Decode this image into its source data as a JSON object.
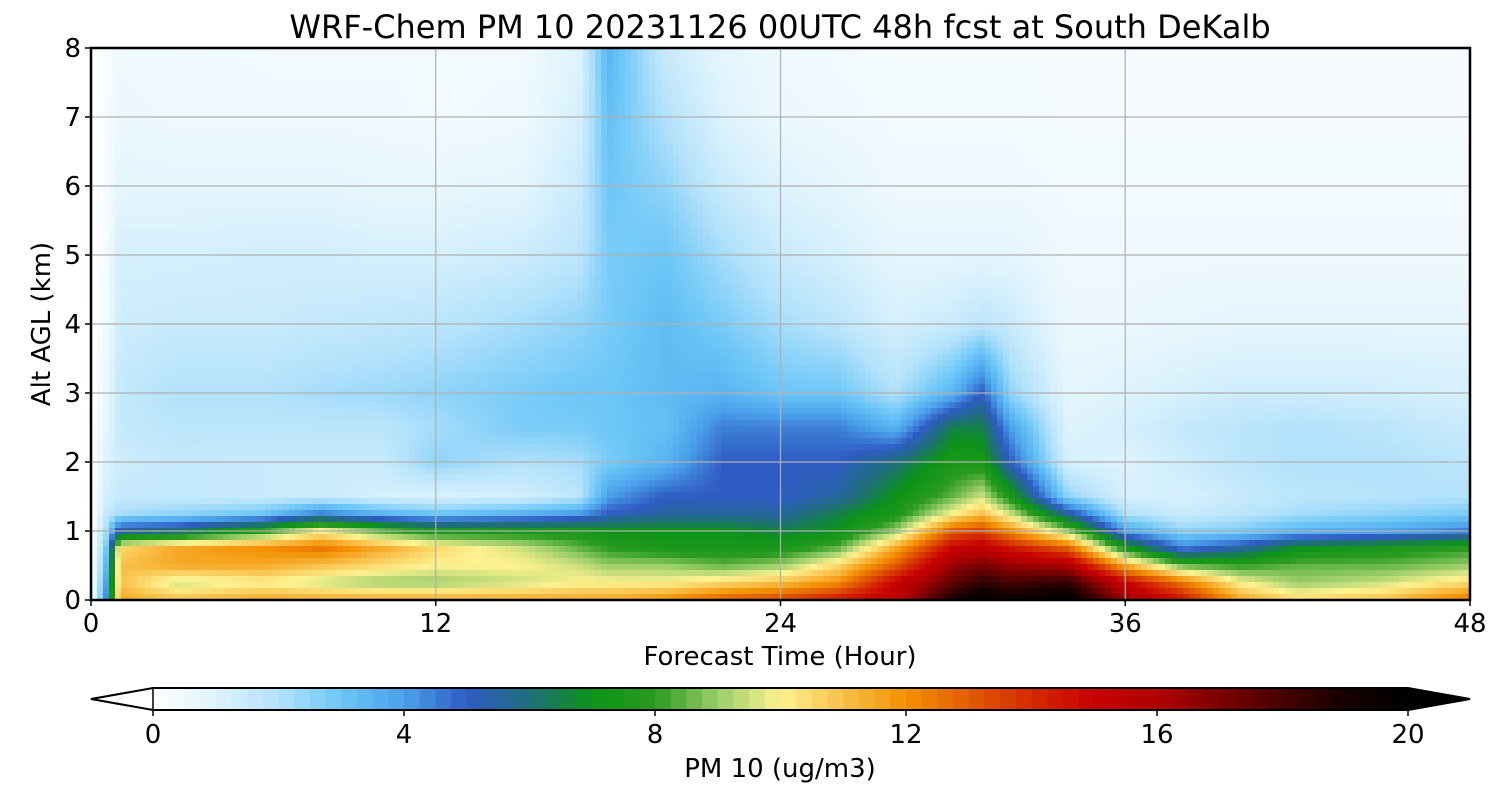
{
  "chart_data": {
    "type": "heatmap",
    "title": "WRF-Chem PM 10  20231126 00UTC 48h fcst at South DeKalb",
    "xlabel": "Forecast Time (Hour)",
    "ylabel": "Alt AGL (km)",
    "xlim": [
      0,
      48
    ],
    "ylim": [
      0,
      8
    ],
    "x_ticks": [
      "0",
      "12",
      "24",
      "36",
      "48"
    ],
    "y_ticks": [
      "0",
      "1",
      "2",
      "3",
      "4",
      "5",
      "6",
      "7",
      "8"
    ],
    "grid": true,
    "colorbar": {
      "label": "PM 10  (ug/m3)",
      "min": 0,
      "max": 20,
      "extend": "both",
      "ticks": [
        "0",
        "4",
        "8",
        "12",
        "16",
        "20"
      ],
      "stops": [
        {
          "value": 0,
          "color": "#ffffff"
        },
        {
          "value": 1,
          "color": "#def3fd"
        },
        {
          "value": 2,
          "color": "#b3e2fb"
        },
        {
          "value": 3,
          "color": "#6cc6f7"
        },
        {
          "value": 4,
          "color": "#4aa0ea"
        },
        {
          "value": 5,
          "color": "#2f5cc4"
        },
        {
          "value": 6,
          "color": "#1f6e7a"
        },
        {
          "value": 7,
          "color": "#0c9417"
        },
        {
          "value": 8,
          "color": "#2a9b20"
        },
        {
          "value": 9,
          "color": "#9acd6a"
        },
        {
          "value": 10,
          "color": "#fff290"
        },
        {
          "value": 11,
          "color": "#f8c04a"
        },
        {
          "value": 12,
          "color": "#f39000"
        },
        {
          "value": 13,
          "color": "#e25c00"
        },
        {
          "value": 14,
          "color": "#d52a00"
        },
        {
          "value": 15,
          "color": "#c80000"
        },
        {
          "value": 16,
          "color": "#b00000"
        },
        {
          "value": 17,
          "color": "#7a0000"
        },
        {
          "value": 18,
          "color": "#460000"
        },
        {
          "value": 19,
          "color": "#160000"
        },
        {
          "value": 20,
          "color": "#000000"
        }
      ]
    },
    "time_hours": [
      0,
      0.5,
      1,
      3,
      6,
      8,
      10,
      12,
      15,
      17,
      18,
      20,
      22,
      24,
      26,
      28,
      30,
      31,
      32,
      34,
      36,
      38,
      40,
      42,
      45,
      48
    ],
    "altitude_km": [
      0,
      0.25,
      0.5,
      0.75,
      1,
      1.25,
      1.5,
      2,
      2.5,
      3,
      4,
      5,
      6,
      7,
      8
    ],
    "values": [
      [
        0.0,
        0.0,
        0.0,
        0.0,
        0.0,
        0.0,
        0.0,
        0.0,
        0.0,
        0.0,
        0.0,
        0.0,
        0.0,
        0.0,
        0.0
      ],
      [
        4.0,
        3.5,
        3.0,
        2.5,
        2.0,
        1.5,
        1.2,
        1.0,
        0.8,
        0.6,
        0.4,
        0.3,
        0.2,
        0.2,
        0.2
      ],
      [
        11.5,
        11.0,
        11.0,
        10.5,
        5.5,
        2.2,
        1.6,
        1.4,
        1.6,
        1.6,
        1.4,
        1.2,
        0.8,
        0.6,
        0.5
      ],
      [
        11.0,
        9.5,
        11.5,
        11.5,
        6.0,
        2.5,
        1.6,
        1.6,
        1.8,
        2.0,
        1.5,
        1.2,
        0.8,
        0.5,
        0.5
      ],
      [
        11.5,
        10.0,
        11.5,
        12.0,
        8.0,
        3.0,
        1.5,
        1.5,
        1.8,
        2.0,
        1.5,
        1.3,
        0.8,
        0.5,
        0.4
      ],
      [
        11.5,
        9.5,
        11.0,
        12.5,
        10.0,
        4.5,
        1.5,
        1.5,
        1.8,
        2.2,
        1.6,
        1.3,
        0.8,
        0.5,
        0.4
      ],
      [
        11.5,
        9.0,
        10.5,
        11.5,
        8.5,
        3.5,
        1.2,
        1.5,
        1.8,
        2.3,
        1.7,
        1.2,
        0.7,
        0.5,
        0.4
      ],
      [
        11.5,
        9.0,
        10.0,
        10.5,
        7.5,
        3.0,
        1.1,
        2.5,
        2.2,
        2.5,
        1.8,
        1.2,
        0.7,
        0.4,
        0.4
      ],
      [
        11.5,
        9.5,
        10.0,
        9.5,
        7.5,
        3.5,
        1.3,
        2.0,
        2.8,
        2.8,
        2.2,
        1.4,
        0.8,
        0.5,
        0.4
      ],
      [
        11.5,
        10.0,
        9.5,
        8.5,
        7.5,
        4.0,
        1.8,
        2.2,
        2.8,
        3.0,
        2.5,
        1.8,
        1.5,
        1.2,
        1.0
      ],
      [
        11.5,
        10.0,
        9.0,
        8.0,
        7.0,
        5.0,
        4.0,
        2.8,
        3.0,
        3.0,
        2.8,
        2.8,
        3.0,
        3.2,
        3.5
      ],
      [
        12.0,
        10.0,
        9.0,
        7.5,
        7.0,
        5.5,
        5.0,
        3.5,
        3.2,
        3.3,
        3.3,
        3.0,
        2.5,
        2.0,
        1.5
      ],
      [
        13.0,
        10.5,
        8.5,
        7.5,
        7.0,
        5.5,
        5.0,
        5.0,
        4.5,
        3.5,
        2.8,
        2.2,
        1.5,
        1.0,
        0.8
      ],
      [
        13.5,
        11.0,
        9.0,
        7.5,
        6.5,
        5.5,
        5.0,
        5.0,
        4.5,
        3.0,
        2.2,
        1.5,
        1.0,
        0.6,
        0.5
      ],
      [
        14.5,
        12.0,
        10.5,
        8.5,
        7.0,
        6.5,
        5.5,
        5.0,
        4.5,
        3.0,
        1.8,
        1.2,
        0.8,
        0.5,
        0.4
      ],
      [
        15.5,
        15.0,
        13.0,
        11.5,
        9.0,
        7.5,
        7.0,
        6.0,
        3.5,
        2.0,
        1.2,
        0.8,
        0.5,
        0.4,
        0.3
      ],
      [
        19.0,
        17.5,
        16.5,
        15.0,
        13.0,
        10.0,
        8.5,
        7.5,
        6.5,
        3.5,
        1.5,
        0.8,
        0.5,
        0.4,
        0.3
      ],
      [
        20.0,
        18.5,
        17.0,
        15.5,
        13.5,
        11.0,
        9.5,
        7.5,
        6.5,
        5.0,
        1.8,
        0.8,
        0.5,
        0.4,
        0.3
      ],
      [
        19.5,
        18.0,
        16.5,
        14.5,
        12.0,
        9.5,
        7.5,
        5.0,
        4.0,
        2.5,
        1.5,
        0.8,
        0.5,
        0.4,
        0.3
      ],
      [
        20.0,
        18.5,
        16.0,
        13.0,
        9.0,
        5.5,
        2.5,
        1.2,
        1.0,
        0.8,
        0.6,
        0.5,
        0.4,
        0.3,
        0.3
      ],
      [
        16.5,
        15.0,
        11.5,
        7.5,
        4.0,
        2.0,
        1.2,
        1.0,
        1.2,
        1.0,
        0.6,
        0.5,
        0.4,
        0.3,
        0.3
      ],
      [
        14.5,
        12.5,
        8.5,
        4.5,
        2.5,
        1.5,
        1.2,
        1.4,
        1.6,
        1.2,
        0.7,
        0.5,
        0.4,
        0.3,
        0.3
      ],
      [
        11.5,
        10.0,
        8.0,
        5.5,
        2.8,
        1.8,
        1.5,
        1.8,
        1.8,
        1.4,
        0.8,
        0.5,
        0.4,
        0.3,
        0.3
      ],
      [
        10.5,
        9.0,
        8.5,
        7.0,
        3.5,
        2.2,
        1.8,
        2.0,
        2.0,
        1.4,
        0.8,
        0.5,
        0.4,
        0.3,
        0.3
      ],
      [
        11.0,
        9.5,
        8.5,
        7.5,
        3.8,
        2.5,
        1.9,
        2.0,
        1.8,
        1.3,
        0.8,
        0.5,
        0.4,
        0.3,
        0.3
      ],
      [
        12.5,
        10.5,
        9.0,
        8.0,
        4.5,
        2.8,
        2.0,
        1.8,
        1.5,
        1.2,
        0.8,
        0.5,
        0.4,
        0.3,
        0.3
      ]
    ]
  }
}
